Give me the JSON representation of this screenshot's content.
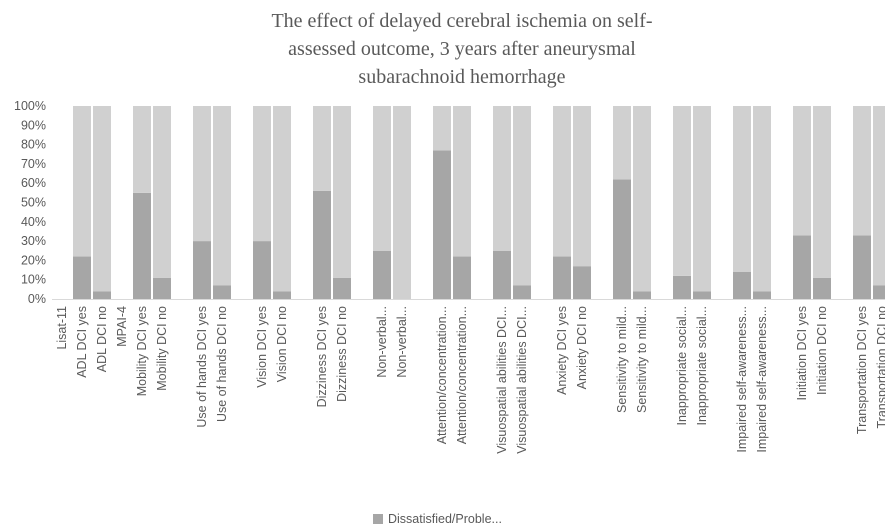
{
  "chart_data": {
    "type": "bar",
    "stacked": true,
    "title_lines": [
      "The effect of delayed cerebral ischemia on self-",
      "assessed outcome, 3 years after aneurysmal",
      "subarachnoid hemorrhage"
    ],
    "xlabel": "",
    "ylabel": "",
    "ylim": [
      0,
      100
    ],
    "y_ticks": [
      "0%",
      "10%",
      "20%",
      "30%",
      "40%",
      "50%",
      "60%",
      "70%",
      "80%",
      "90%",
      "100%"
    ],
    "categories": [
      "Lisat-11",
      "ADL DCI yes",
      "ADL DCI no",
      "MPAI-4",
      "Mobility DCI yes",
      "Mobility DCI no",
      "",
      "Use of hands DCI yes",
      "Use of hands DCI no",
      "",
      "Vision DCI yes",
      "Vision DCI no",
      "",
      "Dizziness DCI yes",
      "Dizziness DCI no",
      "",
      "Non-verbal...",
      "Non-verbal...",
      "",
      "Attention/concentration...",
      "Attention/concentration...",
      "",
      "Visuospatial abilities DCI...",
      "Visuospatial abilities DCI...",
      "",
      "Anxiety DCI yes",
      "Anxiety DCI no",
      "",
      "Sensitivity to mild...",
      "Sensitivity to mild...",
      "",
      "Inappropriate social...",
      "Inappropriate social...",
      "",
      "Impaired self-awareness...",
      "Impaired self-awareness...",
      "",
      "Initiation DCI yes",
      "Initiation DCI no",
      "",
      "Transportation DCI yes",
      "Transportation DCI no"
    ],
    "series": [
      {
        "name": "Dissatisfied/Proble...",
        "color": "#a6a6a6",
        "values": [
          null,
          22,
          4,
          null,
          55,
          11,
          null,
          30,
          7,
          null,
          30,
          4,
          null,
          56,
          11,
          null,
          25,
          0,
          null,
          77,
          22,
          null,
          25,
          7,
          null,
          22,
          17,
          null,
          62,
          4,
          null,
          12,
          4,
          null,
          14,
          4,
          null,
          33,
          11,
          null,
          33,
          7
        ]
      },
      {
        "name": "",
        "color": "#d0d0d0",
        "values": [
          null,
          78,
          96,
          null,
          45,
          89,
          null,
          70,
          93,
          null,
          70,
          96,
          null,
          44,
          89,
          null,
          75,
          100,
          null,
          23,
          78,
          null,
          75,
          93,
          null,
          78,
          83,
          null,
          38,
          96,
          null,
          88,
          96,
          null,
          86,
          96,
          null,
          67,
          89,
          null,
          67,
          93
        ]
      }
    ],
    "legend": {
      "position": "bottom",
      "entries": [
        "Dissatisfied/Proble..."
      ]
    },
    "grid": false
  }
}
